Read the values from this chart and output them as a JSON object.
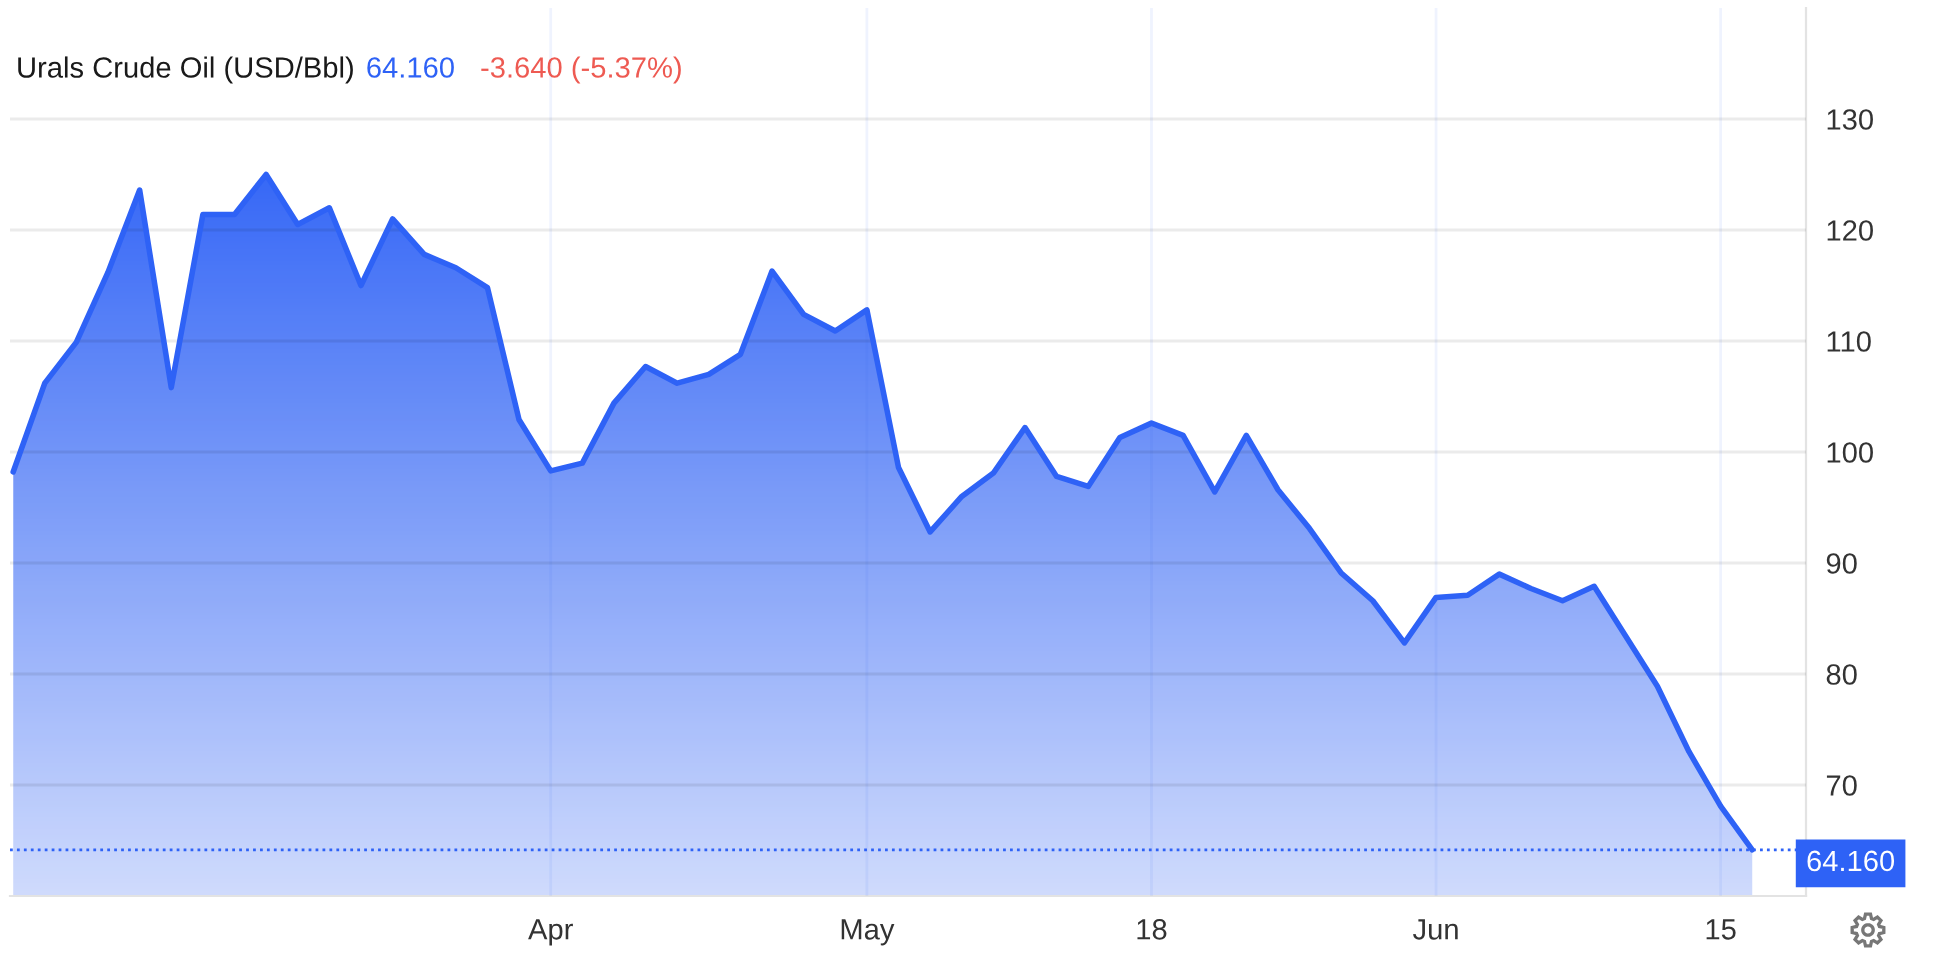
{
  "chart_data": {
    "type": "area",
    "title": "Urals Crude Oil (USD/Bbl)",
    "annotations": [
      "64.160",
      "-3.640 (-5.37%)"
    ],
    "categories": [
      null,
      null,
      null,
      null,
      null,
      null,
      null,
      null,
      null,
      null,
      null,
      null,
      null,
      null,
      null,
      null,
      null,
      "Apr",
      null,
      null,
      null,
      null,
      null,
      null,
      null,
      null,
      null,
      "May",
      null,
      null,
      null,
      null,
      null,
      null,
      null,
      null,
      "18",
      null,
      null,
      null,
      null,
      null,
      null,
      null,
      null,
      "Jun",
      null,
      null,
      null,
      null,
      null,
      null,
      null,
      null,
      "15",
      null
    ],
    "values": [
      98.2,
      106.2,
      109.9,
      116.2,
      123.6,
      105.8,
      121.4,
      121.4,
      125.0,
      120.5,
      122.0,
      115.0,
      121.0,
      117.8,
      116.6,
      114.8,
      102.9,
      98.3,
      99.0,
      104.4,
      107.7,
      106.2,
      107.0,
      108.8,
      116.3,
      112.4,
      110.9,
      112.8,
      98.6,
      92.8,
      96.0,
      98.1,
      102.2,
      97.8,
      96.9,
      101.3,
      102.6,
      101.5,
      96.4,
      101.5,
      96.6,
      93.1,
      89.1,
      86.6,
      82.8,
      86.9,
      87.1,
      89.0,
      87.7,
      86.6,
      87.9,
      83.4,
      78.9,
      73.0,
      68.1,
      64.16
    ],
    "color": "#2e62f6",
    "ylim": [
      60,
      140
    ],
    "yticks": [
      70,
      80,
      90,
      100,
      110,
      120,
      130
    ],
    "grid": true,
    "ref_lines": [
      {
        "axis": "y",
        "value": 64.16,
        "label": "64.160",
        "color": "#2e62f6",
        "line_style": "dotted"
      }
    ]
  }
}
